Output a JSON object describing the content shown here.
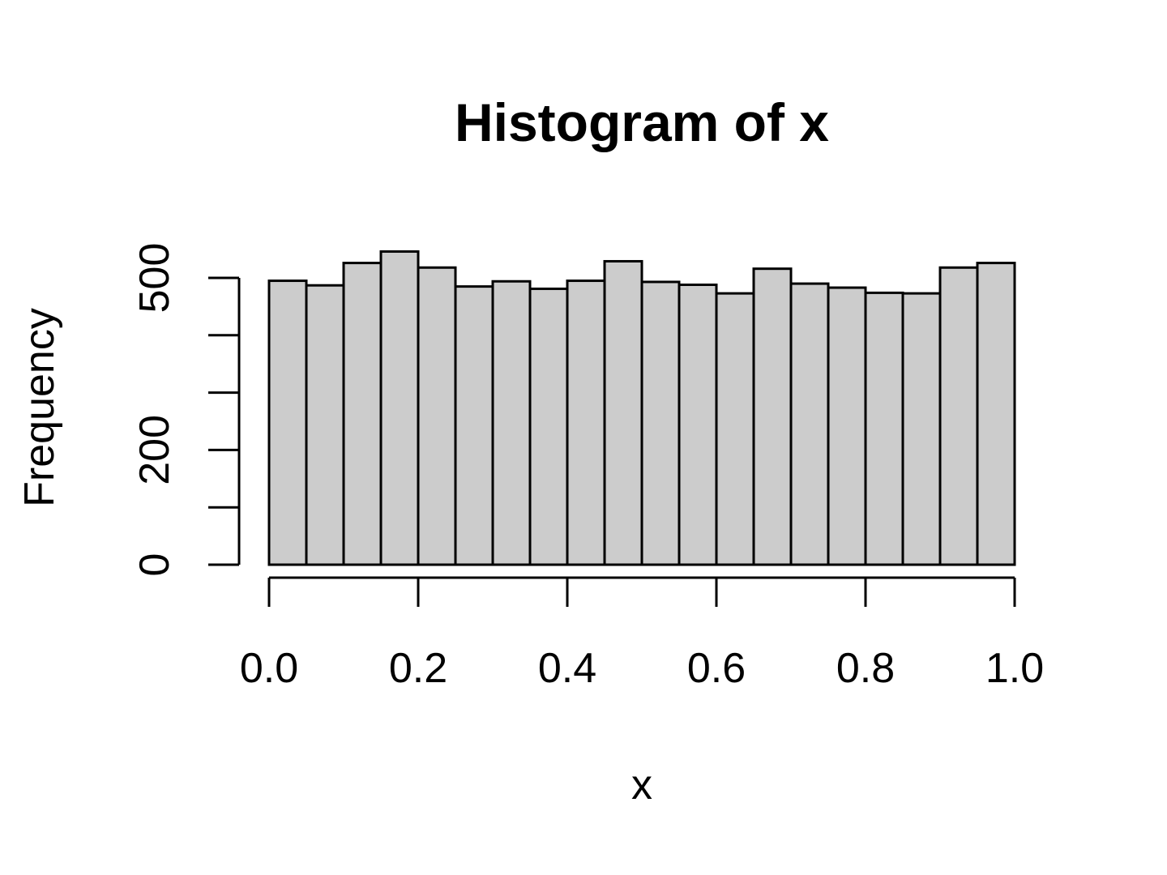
{
  "chart_data": {
    "type": "bar",
    "title": "Histogram of x",
    "xlabel": "x",
    "ylabel": "Frequency",
    "xlim": [
      0,
      1
    ],
    "ylim": [
      0,
      500
    ],
    "bin_edges": [
      0.0,
      0.05,
      0.1,
      0.15,
      0.2,
      0.25,
      0.3,
      0.35,
      0.4,
      0.45,
      0.5,
      0.55,
      0.6,
      0.65,
      0.7,
      0.75,
      0.8,
      0.85,
      0.9,
      0.95,
      1.0
    ],
    "values": [
      495,
      487,
      526,
      546,
      518,
      485,
      494,
      481,
      495,
      529,
      493,
      488,
      473,
      516,
      490,
      483,
      474,
      473,
      518,
      526
    ],
    "x_ticks": [
      0.0,
      0.2,
      0.4,
      0.6,
      0.8,
      1.0
    ],
    "x_tick_labels": [
      "0.0",
      "0.2",
      "0.4",
      "0.6",
      "0.8",
      "1.0"
    ],
    "y_ticks": [
      0,
      100,
      200,
      300,
      400,
      500
    ],
    "y_tick_labels": [
      "0",
      "",
      "200",
      "",
      "",
      "500"
    ],
    "bar_fill": "#cccccc",
    "bar_stroke": "#000000",
    "grid": false
  }
}
